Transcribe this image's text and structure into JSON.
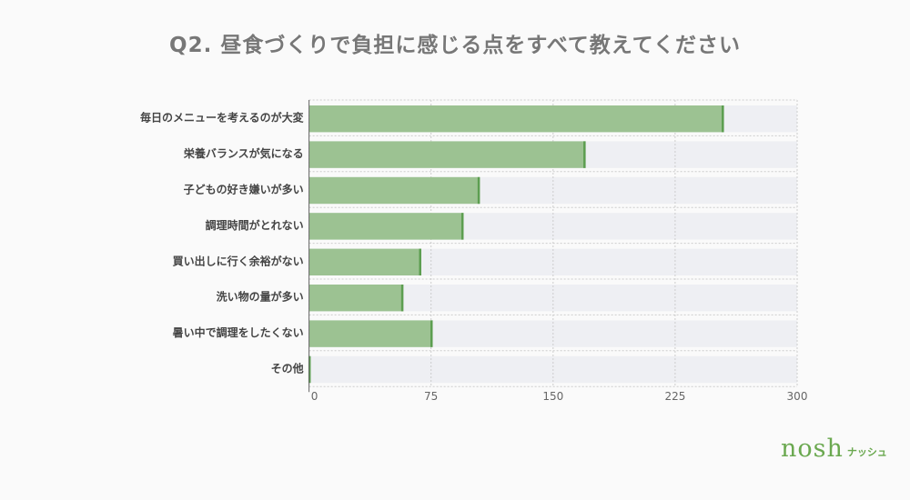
{
  "chart_data": {
    "type": "bar",
    "orientation": "horizontal",
    "title": "Q2. 昼食づくりで負担に感じる点をすべて教えてください",
    "categories": [
      "毎日のメニューを考えるのが大変",
      "栄養バランスが気になる",
      "子どもの好き嫌いが多い",
      "調理時間がとれない",
      "買い出しに行く余裕がない",
      "洗い物の量が多い",
      "暑い中で調理をしたくない",
      "その他"
    ],
    "values": [
      255,
      170,
      105,
      95,
      69,
      58,
      76,
      1
    ],
    "xlim": [
      0,
      300
    ],
    "xticks": [
      "0",
      "75",
      "150",
      "225",
      "300"
    ],
    "grid": true,
    "colors": {
      "bar": "#9cc292",
      "bar_edge": "#5c9e50",
      "track": "#eeeff3"
    }
  },
  "logo": {
    "main": "nosh",
    "sub": "ナッシュ"
  }
}
